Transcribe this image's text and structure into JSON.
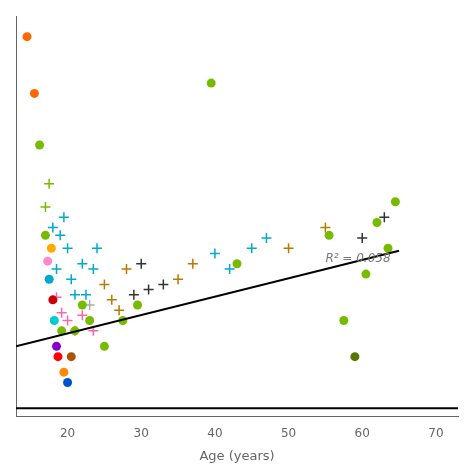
{
  "chart_data": {
    "type": "scatter",
    "x_label": "Age (years)",
    "xlim": [
      13,
      73
    ],
    "ylim": [
      -0.55,
      1.0
    ],
    "xticks": [
      20,
      30,
      40,
      50,
      60,
      70
    ],
    "grid": false,
    "tick_labels": "x",
    "annotations": [
      {
        "text": "R² = 0.058",
        "x": 55,
        "y": 0.06
      }
    ],
    "series": [
      {
        "type": "scatter",
        "marker": "circle",
        "x": [
          14.5,
          15.5,
          16.2,
          17.0,
          17.5,
          17.3,
          17.8,
          18.0,
          18.2,
          18.5,
          18.7,
          19.2,
          19.5,
          20.0,
          20.5,
          21.0,
          22.0,
          23.0,
          25.0,
          27.5,
          29.5,
          39.5,
          43.0,
          55.5,
          57.5,
          59.0,
          60.5,
          62.0,
          63.5,
          64.5
        ],
        "values": [
          0.92,
          0.7,
          0.5,
          0.15,
          -0.02,
          0.05,
          0.1,
          -0.1,
          -0.18,
          -0.28,
          -0.32,
          -0.22,
          -0.38,
          -0.42,
          -0.32,
          -0.22,
          -0.12,
          -0.18,
          -0.28,
          -0.18,
          -0.12,
          0.74,
          0.04,
          0.15,
          -0.18,
          -0.32,
          0.0,
          0.2,
          0.1,
          0.28
        ],
        "colors": [
          "#FF6600",
          "#FF6600",
          "#77BB00",
          "#77BB00",
          "#00AACC",
          "#FF88CC",
          "#FFAA00",
          "#CC0000",
          "#00CCCC",
          "#8800CC",
          "#FF0000",
          "#77BB00",
          "#FF8800",
          "#0055CC",
          "#AA5500",
          "#77BB00",
          "#77BB00",
          "#77BB00",
          "#77BB00",
          "#77BB00",
          "#77BB00",
          "#77BB00",
          "#77BB00",
          "#77BB00",
          "#77BB00",
          "#557700",
          "#77BB00",
          "#77BB00",
          "#77BB00",
          "#77BB00"
        ]
      },
      {
        "type": "scatter",
        "marker": "plus",
        "x": [
          17.0,
          17.5,
          18.0,
          18.5,
          19.0,
          19.5,
          20.0,
          20.5,
          21.0,
          22.0,
          22.5,
          23.0,
          23.5,
          24.0,
          25.0,
          26.0,
          27.0,
          28.0,
          29.0,
          30.0,
          31.0,
          33.0,
          35.0,
          37.0,
          40.0,
          42.0,
          45.0,
          47.0,
          50.0,
          55.0,
          60.0,
          63.0,
          18.5,
          19.2,
          20.0,
          21.0,
          22.0,
          23.5
        ],
        "values": [
          0.26,
          0.35,
          0.18,
          0.02,
          0.15,
          0.22,
          0.1,
          -0.02,
          -0.08,
          0.04,
          -0.08,
          -0.12,
          0.02,
          0.1,
          -0.04,
          -0.1,
          -0.14,
          0.02,
          -0.08,
          0.04,
          -0.06,
          -0.04,
          -0.02,
          0.04,
          0.08,
          0.02,
          0.1,
          0.14,
          0.1,
          0.18,
          0.14,
          0.22,
          -0.09,
          -0.15,
          -0.18,
          -0.22,
          -0.16,
          -0.22
        ],
        "colors": [
          "#77BB00",
          "#77BB00",
          "#00AACC",
          "#00AACC",
          "#00AACC",
          "#00AACC",
          "#00AACC",
          "#00AACC",
          "#00AACC",
          "#00AACC",
          "#00AACC",
          "#AAAAAA",
          "#00AACC",
          "#00AACC",
          "#BB7700",
          "#BB7700",
          "#BB7700",
          "#BB7700",
          "#333333",
          "#333333",
          "#333333",
          "#333333",
          "#BB7700",
          "#BB7700",
          "#00AACC",
          "#00AACC",
          "#00AACC",
          "#00AACC",
          "#BB7700",
          "#BB7700",
          "#333333",
          "#333333",
          "#FF66AA",
          "#FF66AA",
          "#FF66AA",
          "#FF66AA",
          "#FF66AA",
          "#FF66AA"
        ]
      },
      {
        "type": "line",
        "x": [
          13,
          65
        ],
        "values": [
          -0.28,
          0.09
        ],
        "color": "#000000"
      },
      {
        "type": "line",
        "x": [
          13,
          73
        ],
        "values": [
          -0.52,
          -0.52
        ],
        "color": "#000000"
      }
    ]
  }
}
